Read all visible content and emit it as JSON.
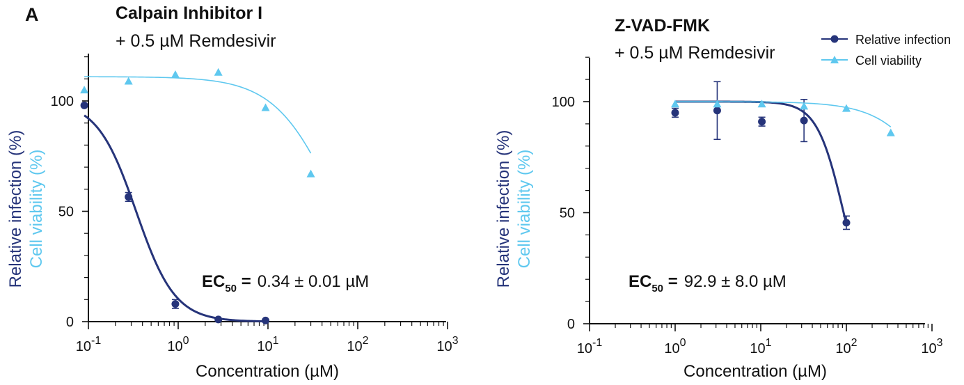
{
  "colors": {
    "infection": "#26347a",
    "viability": "#5fc8ef",
    "axis": "#111111"
  },
  "panel_letter": "A",
  "legend": {
    "infection": "Relative infection",
    "viability": "Cell viability"
  },
  "chart_data": [
    {
      "type": "scatter",
      "title": "Calpain Inhibitor I",
      "subtitle": "+ 0.5 µM Remdesivir",
      "xlabel": "Concentration (µM)",
      "ylabel": "Relative infection (%)",
      "ylabel2": "Cell viability (%)",
      "x_scale": "log",
      "xlim": [
        0.09,
        1000
      ],
      "ylim": [
        0,
        120
      ],
      "x_ticks": [
        0.1,
        1,
        10,
        100,
        1000
      ],
      "y_ticks": [
        0,
        50,
        100
      ],
      "y_tick_labels": [
        "0",
        "50",
        "100"
      ],
      "x_tick_labels": [
        {
          "base": "10",
          "exp": "-1"
        },
        {
          "base": "10",
          "exp": "0"
        },
        {
          "base": "10",
          "exp": "1"
        },
        {
          "base": "10",
          "exp": "2"
        },
        {
          "base": "10",
          "exp": "3"
        }
      ],
      "annotation": {
        "ec_label": "EC",
        "ec_sub": "50",
        "ec_eq": " =",
        "ec_value": "0.34  ± 0.01 µM"
      },
      "series": [
        {
          "name": "Relative infection",
          "marker": "circle",
          "x": [
            0.09,
            0.28,
            0.93,
            2.8,
            9.4
          ],
          "y": [
            98,
            56.5,
            8,
            1,
            0.5
          ],
          "err": [
            0,
            2,
            2,
            0,
            0
          ],
          "fit": {
            "top": 100,
            "bottom": 0,
            "ec50": 0.34,
            "hill": 2.0
          }
        },
        {
          "name": "Cell viability",
          "marker": "triangle",
          "x": [
            0.09,
            0.28,
            0.93,
            2.8,
            9.4,
            30
          ],
          "y": [
            105,
            109,
            112,
            113,
            97,
            67
          ],
          "fit": {
            "top": 111,
            "bottom": 0,
            "ec50": 55,
            "hill": 1.3
          }
        }
      ]
    },
    {
      "type": "scatter",
      "title": "Z-VAD-FMK",
      "subtitle": "+ 0.5 µM Remdesivir",
      "xlabel": "Concentration (µM)",
      "ylabel": "Relative infection (%)",
      "ylabel2": "Cell viability (%)",
      "x_scale": "log",
      "xlim": [
        0.1,
        1000
      ],
      "ylim": [
        0,
        120
      ],
      "x_ticks": [
        0.1,
        1,
        10,
        100,
        1000
      ],
      "y_ticks": [
        0,
        50,
        100
      ],
      "y_tick_labels": [
        "0",
        "50",
        "100"
      ],
      "x_tick_labels": [
        {
          "base": "10",
          "exp": "-1"
        },
        {
          "base": "10",
          "exp": "0"
        },
        {
          "base": "10",
          "exp": "1"
        },
        {
          "base": "10",
          "exp": "2"
        },
        {
          "base": "10",
          "exp": "3"
        }
      ],
      "legend": "top-right",
      "annotation": {
        "ec_label": "EC",
        "ec_sub": "50",
        "ec_eq": " =",
        "ec_value": "92.9 ± 8.0 µM"
      },
      "series": [
        {
          "name": "Relative infection",
          "marker": "circle",
          "x": [
            1,
            3.1,
            10.3,
            32,
            100
          ],
          "y": [
            95,
            96,
            91,
            91.5,
            45.5
          ],
          "err": [
            2,
            13,
            2,
            9.5,
            3
          ],
          "fit": {
            "top": 100,
            "bottom": 0,
            "ec50": 92.9,
            "hill": 2.8
          }
        },
        {
          "name": "Cell viability",
          "marker": "triangle",
          "x": [
            1,
            3.1,
            10.3,
            32,
            100,
            330
          ],
          "y": [
            99,
            99,
            99,
            98,
            97,
            86
          ],
          "fit": {
            "top": 100,
            "bottom": 0,
            "ec50": 1600,
            "hill": 1.3
          }
        }
      ]
    }
  ]
}
